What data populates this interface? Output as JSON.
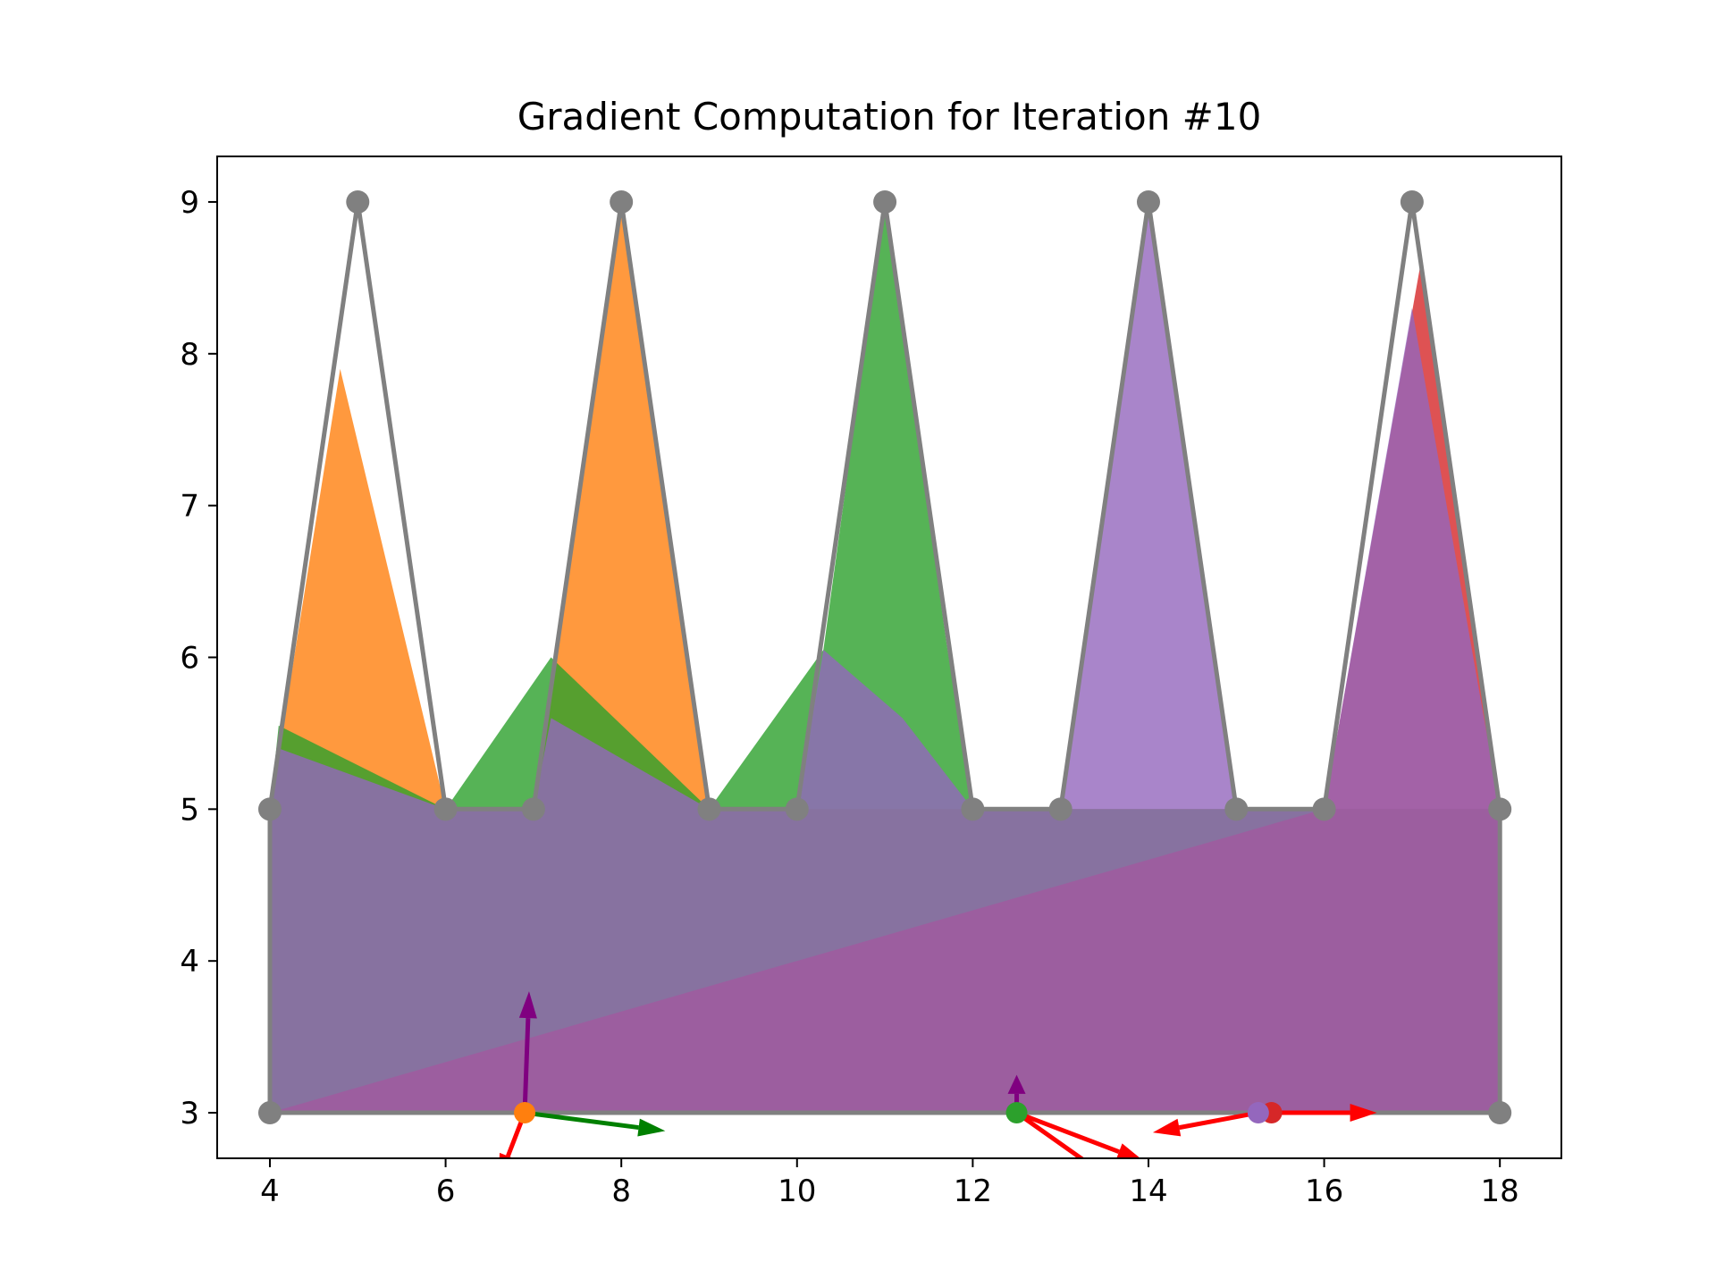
{
  "chart_data": {
    "type": "area",
    "title": "Gradient Computation for Iteration #10",
    "xlabel": "",
    "ylabel": "",
    "xlim": [
      3.4,
      18.7
    ],
    "ylim": [
      2.7,
      9.3
    ],
    "grid": false,
    "x_ticks": [
      4,
      6,
      8,
      10,
      12,
      14,
      16,
      18
    ],
    "y_ticks": [
      3,
      4,
      5,
      6,
      7,
      8,
      9
    ],
    "target_outline": {
      "color": "#808080",
      "points": [
        [
          4,
          3
        ],
        [
          4,
          5
        ],
        [
          5,
          9
        ],
        [
          6,
          5
        ],
        [
          7,
          5
        ],
        [
          8,
          9
        ],
        [
          9,
          5
        ],
        [
          10,
          5
        ],
        [
          11,
          9
        ],
        [
          12,
          5
        ],
        [
          13,
          5
        ],
        [
          14,
          9
        ],
        [
          15,
          5
        ],
        [
          16,
          5
        ],
        [
          17,
          9
        ],
        [
          18,
          5
        ],
        [
          18,
          3
        ],
        [
          4,
          3
        ]
      ]
    },
    "series": [
      {
        "color": "#ff7f0e",
        "polygon": [
          [
            4,
            3
          ],
          [
            4,
            5
          ],
          [
            4.8,
            7.9
          ],
          [
            6,
            5
          ],
          [
            7,
            5
          ],
          [
            8,
            9
          ],
          [
            9,
            5
          ],
          [
            18,
            5
          ],
          [
            18,
            3
          ]
        ]
      },
      {
        "color": "#2ca02c",
        "polygon": [
          [
            4,
            3
          ],
          [
            4,
            5
          ],
          [
            4.1,
            5.55
          ],
          [
            6,
            5
          ],
          [
            7.2,
            6
          ],
          [
            9,
            5
          ],
          [
            10.3,
            6.05
          ],
          [
            11,
            9
          ],
          [
            11.7,
            6.1
          ],
          [
            12,
            5
          ],
          [
            18,
            5
          ],
          [
            18,
            3
          ]
        ]
      },
      {
        "color": "#d62728",
        "polygon": [
          [
            4,
            3
          ],
          [
            16,
            5
          ],
          [
            17.1,
            8.6
          ],
          [
            18,
            5
          ],
          [
            18,
            3
          ]
        ]
      },
      {
        "color": "#9467bd",
        "polygon": [
          [
            4,
            3
          ],
          [
            4,
            5
          ],
          [
            4.1,
            5.4
          ],
          [
            6,
            5
          ],
          [
            7,
            5
          ],
          [
            7.2,
            5.6
          ],
          [
            9,
            5
          ],
          [
            10,
            5
          ],
          [
            10.3,
            6.05
          ],
          [
            11.2,
            5.6
          ],
          [
            12,
            5
          ],
          [
            13,
            5
          ],
          [
            14,
            9
          ],
          [
            15,
            5
          ],
          [
            16,
            5
          ],
          [
            17,
            8.3
          ],
          [
            18,
            5
          ],
          [
            18,
            3
          ]
        ]
      }
    ],
    "points": [
      {
        "x": 6.9,
        "y": 3,
        "color": "#ff7f0e"
      },
      {
        "x": 12.5,
        "y": 3,
        "color": "#2ca02c"
      },
      {
        "x": 15.4,
        "y": 3,
        "color": "#d62728"
      },
      {
        "x": 15.25,
        "y": 3,
        "color": "#9467bd"
      }
    ],
    "arrows": [
      {
        "from": [
          6.9,
          3
        ],
        "to": [
          6.95,
          3.8
        ],
        "color": "#800080"
      },
      {
        "from": [
          6.9,
          3
        ],
        "to": [
          8.5,
          2.88
        ],
        "color": "#008000"
      },
      {
        "from": [
          6.9,
          3
        ],
        "to": [
          6.6,
          2.55
        ],
        "color": "#ff0000"
      },
      {
        "from": [
          12.5,
          3
        ],
        "to": [
          12.5,
          3.25
        ],
        "color": "#800080"
      },
      {
        "from": [
          12.5,
          3
        ],
        "to": [
          13.95,
          2.68
        ],
        "color": "#ff0000"
      },
      {
        "from": [
          12.5,
          3
        ],
        "to": [
          13.6,
          2.55
        ],
        "color": "#ff0000"
      },
      {
        "from": [
          15.25,
          3
        ],
        "to": [
          14.05,
          2.87
        ],
        "color": "#ff0000"
      },
      {
        "from": [
          15.4,
          3
        ],
        "to": [
          16.6,
          3.0
        ],
        "color": "#ff0000"
      }
    ]
  }
}
